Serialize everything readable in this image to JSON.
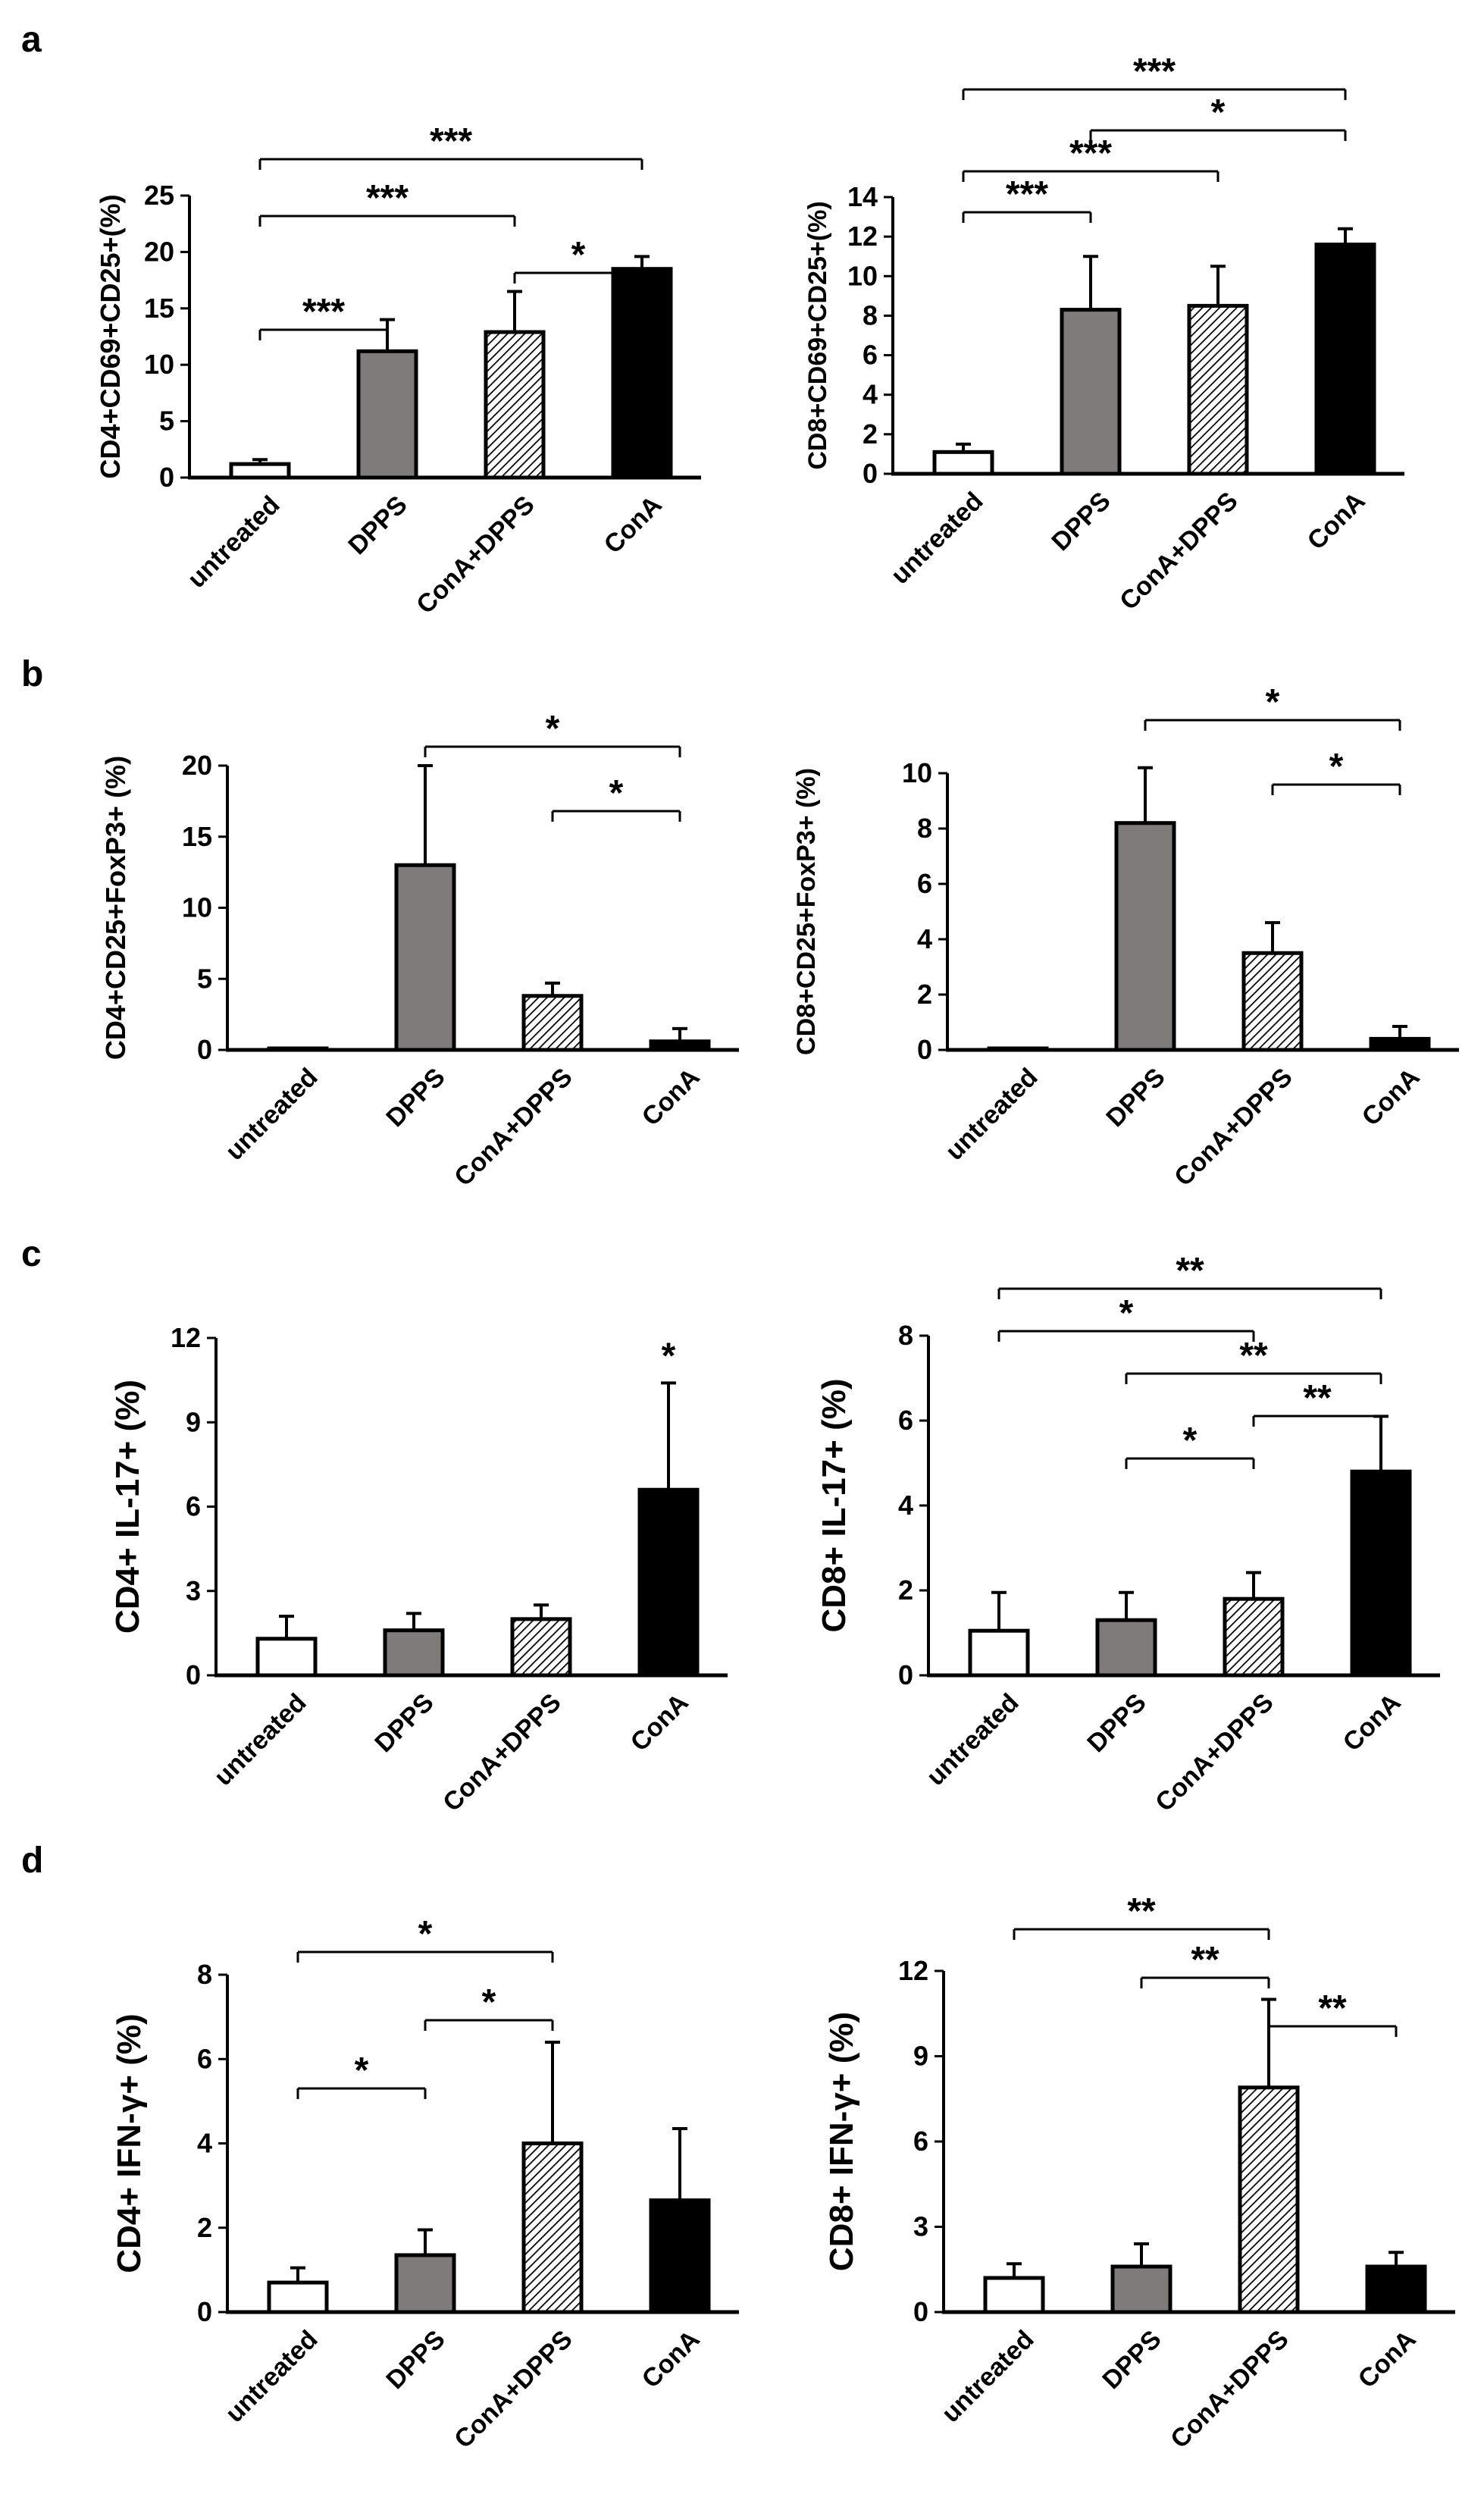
{
  "panel_labels": [
    "a",
    "b",
    "c",
    "d"
  ],
  "colors": {
    "untreated": "#ffffff",
    "DPPS": "#7f7b7b",
    "ConA+DPPS": "hatch",
    "ConA": "#000000"
  },
  "chart_data": [
    {
      "id": "a-left",
      "type": "bar",
      "panel": "a",
      "categories": [
        "untreated",
        "DPPS",
        "ConA+DPPS",
        "ConA"
      ],
      "values": [
        1.2,
        11.2,
        12.9,
        18.5
      ],
      "errors": [
        0.4,
        2.8,
        3.6,
        1.1
      ],
      "ylabel": "CD4+CD69+CD25+(%)",
      "ylim": [
        0,
        25
      ],
      "yticks": [
        0,
        5,
        10,
        15,
        20,
        25
      ],
      "brackets": [
        {
          "from": 0,
          "to": 3,
          "label": "***"
        },
        {
          "from": 0,
          "to": 2,
          "label": "***"
        },
        {
          "from": 2,
          "to": 3,
          "label": "*"
        },
        {
          "from": 0,
          "to": 1,
          "label": "***"
        }
      ]
    },
    {
      "id": "a-right",
      "type": "bar",
      "panel": "a",
      "categories": [
        "untreated",
        "DPPS",
        "ConA+DPPS",
        "ConA"
      ],
      "values": [
        1.1,
        8.3,
        8.5,
        11.6
      ],
      "errors": [
        0.4,
        2.7,
        2.0,
        0.8
      ],
      "ylabel": "CD8+CD69+CD25+(%)",
      "ylim": [
        0,
        14
      ],
      "yticks": [
        0,
        2,
        4,
        6,
        8,
        10,
        12,
        14
      ],
      "brackets": [
        {
          "from": 0,
          "to": 3,
          "label": "***"
        },
        {
          "from": 1,
          "to": 3,
          "label": "*"
        },
        {
          "from": 0,
          "to": 2,
          "label": "***"
        },
        {
          "from": 0,
          "to": 1,
          "label": "***"
        }
      ]
    },
    {
      "id": "b-left",
      "type": "bar",
      "panel": "b",
      "categories": [
        "untreated",
        "DPPS",
        "ConA+DPPS",
        "ConA"
      ],
      "values": [
        0.1,
        13.0,
        3.8,
        0.6
      ],
      "errors": [
        0,
        7.0,
        0.9,
        0.9
      ],
      "ylabel": "CD4+CD25+FoxP3+ (%)",
      "ylim": [
        0,
        20
      ],
      "yticks": [
        0,
        5,
        10,
        15,
        20
      ],
      "brackets": [
        {
          "from": 1,
          "to": 3,
          "label": "*"
        },
        {
          "from": 2,
          "to": 3,
          "label": "*"
        }
      ]
    },
    {
      "id": "b-right",
      "type": "bar",
      "panel": "b",
      "categories": [
        "untreated",
        "DPPS",
        "ConA+DPPS",
        "ConA"
      ],
      "values": [
        0.05,
        8.2,
        3.5,
        0.4
      ],
      "errors": [
        0,
        2.0,
        1.1,
        0.45
      ],
      "ylabel": "CD8+CD25+FoxP3+ (%)",
      "ylim": [
        0,
        10
      ],
      "yticks": [
        0,
        2,
        4,
        6,
        8,
        10
      ],
      "brackets": [
        {
          "from": 1,
          "to": 3,
          "label": "*"
        },
        {
          "from": 2,
          "to": 3,
          "label": "*"
        }
      ]
    },
    {
      "id": "c-left",
      "type": "bar",
      "panel": "c",
      "categories": [
        "untreated",
        "DPPS",
        "ConA+DPPS",
        "ConA"
      ],
      "values": [
        1.3,
        1.6,
        2.0,
        6.6
      ],
      "errors": [
        0.8,
        0.6,
        0.5,
        3.8
      ],
      "ylabel": "CD4+ IL-17+ (%)",
      "ylim": [
        0,
        12
      ],
      "yticks": [
        0,
        3,
        6,
        9,
        12
      ],
      "brackets": [],
      "star_labels": [
        {
          "index": 3,
          "label": "*"
        }
      ]
    },
    {
      "id": "c-right",
      "type": "bar",
      "panel": "c",
      "categories": [
        "untreated",
        "DPPS",
        "ConA+DPPS",
        "ConA"
      ],
      "values": [
        1.05,
        1.3,
        1.8,
        4.8
      ],
      "errors": [
        0.9,
        0.65,
        0.62,
        1.3
      ],
      "ylabel": "CD8+ IL-17+ (%)",
      "ylim": [
        0,
        8
      ],
      "yticks": [
        0,
        2,
        4,
        6,
        8
      ],
      "brackets": [
        {
          "from": 0,
          "to": 3,
          "label": "**"
        },
        {
          "from": 0,
          "to": 2,
          "label": "*"
        },
        {
          "from": 1,
          "to": 3,
          "label": "**"
        },
        {
          "from": 2,
          "to": 3,
          "label": "**"
        },
        {
          "from": 1,
          "to": 2,
          "label": "*"
        }
      ]
    },
    {
      "id": "d-left",
      "type": "bar",
      "panel": "d",
      "categories": [
        "untreated",
        "DPPS",
        "ConA+DPPS",
        "ConA"
      ],
      "values": [
        0.7,
        1.35,
        4.0,
        2.65
      ],
      "errors": [
        0.35,
        0.6,
        2.4,
        1.7
      ],
      "ylabel": "CD4+ IFN-γ+ (%)",
      "ylim": [
        0,
        8
      ],
      "yticks": [
        0,
        2,
        4,
        6,
        8
      ],
      "brackets": [
        {
          "from": 0,
          "to": 2,
          "label": "*"
        },
        {
          "from": 1,
          "to": 2,
          "label": "*"
        },
        {
          "from": 0,
          "to": 1,
          "label": "*"
        }
      ]
    },
    {
      "id": "d-right",
      "type": "bar",
      "panel": "d",
      "categories": [
        "untreated",
        "DPPS",
        "ConA+DPPS",
        "ConA"
      ],
      "values": [
        1.2,
        1.6,
        7.9,
        1.6
      ],
      "errors": [
        0.5,
        0.8,
        3.1,
        0.5
      ],
      "ylabel": "CD8+ IFN-γ+ (%)",
      "ylim": [
        0,
        12
      ],
      "yticks": [
        0,
        3,
        6,
        9,
        12
      ],
      "brackets": [
        {
          "from": 0,
          "to": 2,
          "label": "**"
        },
        {
          "from": 1,
          "to": 2,
          "label": "**"
        },
        {
          "from": 2,
          "to": 3,
          "label": "**"
        }
      ]
    }
  ]
}
